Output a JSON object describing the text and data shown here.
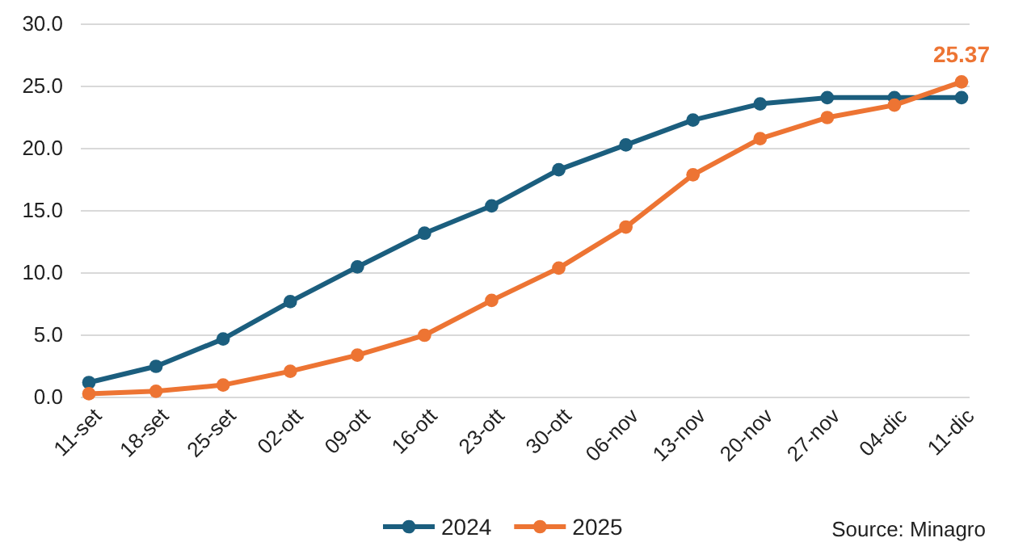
{
  "chart_data": {
    "type": "line",
    "categories": [
      "11-set",
      "18-set",
      "25-set",
      "02-ott",
      "09-ott",
      "16-ott",
      "23-ott",
      "30-ott",
      "06-nov",
      "13-nov",
      "20-nov",
      "27-nov",
      "04-dic",
      "11-dic"
    ],
    "series": [
      {
        "name": "2024",
        "color": "#1b5e7e",
        "values": [
          1.2,
          2.5,
          4.7,
          7.7,
          10.5,
          13.2,
          15.4,
          18.3,
          20.3,
          22.3,
          23.6,
          24.1,
          24.1,
          24.1
        ]
      },
      {
        "name": "2025",
        "color": "#ed7433",
        "values": [
          0.3,
          0.5,
          1.0,
          2.1,
          3.4,
          5.0,
          7.8,
          10.4,
          13.7,
          17.9,
          20.8,
          22.5,
          23.5,
          25.37
        ],
        "value_labels": [
          null,
          null,
          null,
          null,
          null,
          null,
          null,
          null,
          null,
          null,
          null,
          null,
          null,
          "25.37"
        ]
      }
    ],
    "ylim": [
      0,
      30
    ],
    "yticks": [
      {
        "value": 0,
        "label": "0.0"
      },
      {
        "value": 5,
        "label": "5.0"
      },
      {
        "value": 10,
        "label": "10.0"
      },
      {
        "value": 15,
        "label": "15.0"
      },
      {
        "value": 20,
        "label": "20.0"
      },
      {
        "value": 25,
        "label": "25.0"
      },
      {
        "value": 30,
        "label": "30.0"
      }
    ],
    "grid": "y",
    "legend": "bottom",
    "marker": "circle",
    "line_style": "solid",
    "annotations": [
      "Source: Minagro"
    ]
  }
}
